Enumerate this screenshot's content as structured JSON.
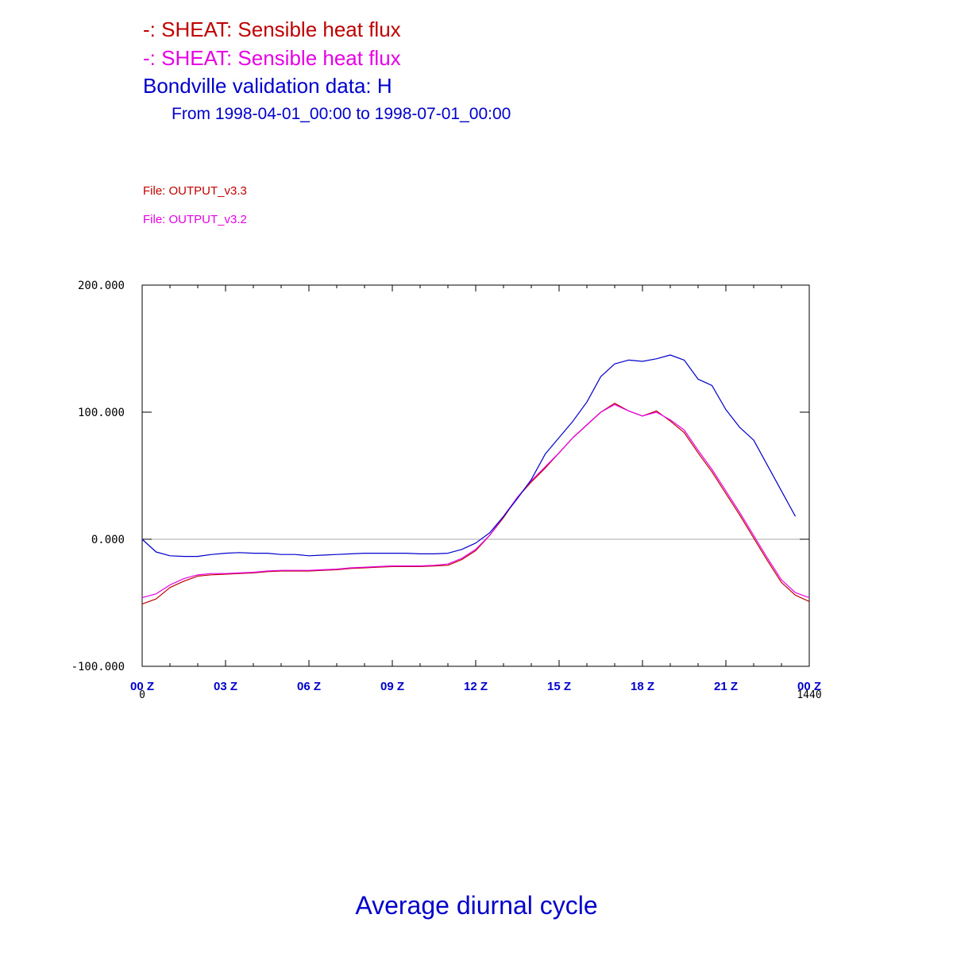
{
  "header": {
    "line1": "-: SHEAT: Sensible heat flux",
    "line2": "-: SHEAT: Sensible heat flux",
    "line3": "Bondville validation data: H",
    "line4": "From 1998-04-01_00:00 to 1998-07-01_00:00",
    "file1": "File: OUTPUT_v3.3",
    "file2": "File: OUTPUT_v3.2"
  },
  "colors": {
    "series1": "#c00000",
    "series2": "#e600e6",
    "obs": "#0000cc",
    "zero_line": "#aaaaaa",
    "axis": "#000000",
    "tick_label": "#0000cc"
  },
  "footer": {
    "title": "Average diurnal cycle"
  },
  "chart_data": {
    "type": "line",
    "title": "",
    "xlabel": "",
    "ylabel": "",
    "xlim": [
      0,
      1440
    ],
    "ylim": [
      -100,
      200
    ],
    "grid": false,
    "yticks": [
      -100,
      0,
      100,
      200
    ],
    "ytick_labels": [
      "-100.000",
      "0.000",
      "100.000",
      "200.000"
    ],
    "xticks": [
      0,
      180,
      360,
      540,
      720,
      900,
      1080,
      1260,
      1440
    ],
    "xtick_labels": [
      "00 Z",
      "03 Z",
      "06 Z",
      "09 Z",
      "12 Z",
      "15 Z",
      "18 Z",
      "21 Z",
      "00 Z"
    ],
    "x_range_labels": [
      "0",
      "1440"
    ],
    "reference_line_y": 0,
    "x": [
      0,
      30,
      60,
      90,
      120,
      150,
      180,
      210,
      240,
      270,
      300,
      330,
      360,
      390,
      420,
      450,
      480,
      510,
      540,
      570,
      600,
      630,
      660,
      690,
      720,
      750,
      780,
      810,
      840,
      870,
      900,
      930,
      960,
      990,
      1020,
      1050,
      1080,
      1110,
      1140,
      1170,
      1200,
      1230,
      1260,
      1290,
      1320,
      1350,
      1380,
      1410,
      1440
    ],
    "series": [
      {
        "name": "",
        "values": [
          -51,
          -47,
          -38,
          -33,
          -29,
          -28,
          -27.5,
          -27,
          -26.5,
          -25.5,
          -25,
          -25,
          -25,
          -24.5,
          -24,
          -23,
          -22.5,
          -22,
          -21.5,
          -21.5,
          -21.5,
          -21,
          -20.5,
          -16,
          -9,
          3,
          17,
          33,
          45,
          56,
          68,
          80,
          90,
          100,
          107,
          101,
          97,
          101,
          93,
          84,
          68,
          53,
          36,
          19,
          1,
          -17,
          -34,
          -44,
          -49
        ]
      },
      {
        "name": "",
        "values": [
          -46,
          -43,
          -36,
          -31,
          -28,
          -27,
          -27,
          -26.5,
          -26,
          -25,
          -24.5,
          -24.5,
          -24.5,
          -24,
          -23.5,
          -22.5,
          -22,
          -21.5,
          -21,
          -21,
          -21,
          -20.5,
          -19.5,
          -15,
          -8,
          3,
          18,
          33,
          46,
          57,
          68,
          80,
          90,
          100,
          106,
          101,
          97,
          100,
          94,
          86,
          70,
          55,
          38,
          21,
          3,
          -15,
          -32,
          -42,
          -46
        ]
      },
      {
        "name": "",
        "values": [
          0,
          -10,
          -13,
          -13.5,
          -13.5,
          -12,
          -11,
          -10.5,
          -11,
          -11,
          -12,
          -12,
          -13,
          -12.5,
          -12,
          -11.5,
          -11,
          -11,
          -11,
          -11,
          -11.5,
          -11.5,
          -11,
          -8,
          -3,
          5,
          18,
          32,
          47,
          67,
          80,
          93,
          108,
          128,
          138,
          141,
          140,
          142,
          145,
          141,
          126,
          121,
          102,
          88,
          78,
          58,
          38,
          18,
          null
        ]
      }
    ]
  }
}
